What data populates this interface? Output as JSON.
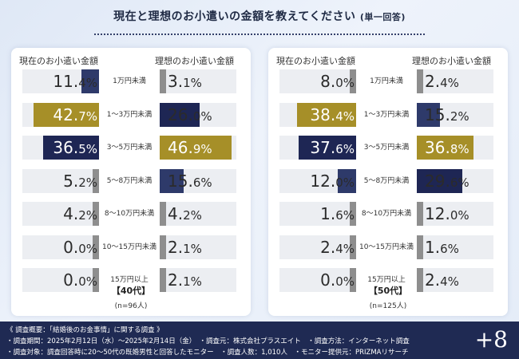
{
  "title": "現在と理想のお小遣いの金額を教えてください",
  "subtitle": "(単一回答)",
  "colors": {
    "navy": "#1e2654",
    "gold": "#a68f28",
    "slate": "#2e3a6a",
    "gray": "#8e8e8e",
    "lightgray": "#eceef2"
  },
  "chart_data": [
    {
      "type": "bar",
      "group_label": "【40代】",
      "n_label": "(n=96人)",
      "current_label": "現在のお小遣い金額",
      "ideal_label": "理想のお小遣い金額",
      "categories": [
        "1万円未満",
        "1〜3万円未満",
        "3〜5万円未満",
        "5〜8万円未満",
        "8〜10万円未満",
        "10〜15万円未満",
        "15万円以上"
      ],
      "series": [
        {
          "name": "現在のお小遣い金額",
          "values": [
            11.4,
            42.7,
            36.5,
            5.2,
            4.2,
            0.0,
            0.0
          ]
        },
        {
          "name": "理想のお小遣い金額",
          "values": [
            3.1,
            26.0,
            46.9,
            15.6,
            4.2,
            2.1,
            2.1
          ]
        }
      ],
      "current_text": [
        [
          "11.",
          "4%"
        ],
        [
          "42.",
          "7%"
        ],
        [
          "36.",
          "5%"
        ],
        [
          "5.",
          "2%"
        ],
        [
          "4.",
          "2%"
        ],
        [
          "0.",
          "0%"
        ],
        [
          "0.",
          "0%"
        ]
      ],
      "ideal_text": [
        [
          "3.",
          "1%"
        ],
        [
          "26.",
          "0%"
        ],
        [
          "46.",
          "9%"
        ],
        [
          "15.",
          "6%"
        ],
        [
          "4.",
          "2%"
        ],
        [
          "2.",
          "1%"
        ],
        [
          "2.",
          "1%"
        ]
      ],
      "current_colors": [
        "slate",
        "gold",
        "navy",
        "gray",
        "gray",
        "gray",
        "gray"
      ],
      "ideal_colors": [
        "gray",
        "navy",
        "gold",
        "slate",
        "gray",
        "gray",
        "gray"
      ]
    },
    {
      "type": "bar",
      "group_label": "【50代】",
      "n_label": "(n=125人)",
      "current_label": "現在のお小遣い金額",
      "ideal_label": "理想のお小遣い金額",
      "categories": [
        "1万円未満",
        "1〜3万円未満",
        "3〜5万円未満",
        "5〜8万円未満",
        "8〜10万円未満",
        "10〜15万円未満",
        "15万円以上"
      ],
      "series": [
        {
          "name": "現在のお小遣い金額",
          "values": [
            8.0,
            38.4,
            37.6,
            12.0,
            1.6,
            2.4,
            0.0
          ]
        },
        {
          "name": "理想のお小遣い金額",
          "values": [
            2.4,
            15.2,
            36.8,
            29.6,
            12.0,
            1.6,
            2.4
          ]
        }
      ],
      "current_text": [
        [
          "8.",
          "0%"
        ],
        [
          "38.",
          "4%"
        ],
        [
          "37.",
          "6%"
        ],
        [
          "12.",
          "0%"
        ],
        [
          "1.",
          "6%"
        ],
        [
          "2.",
          "4%"
        ],
        [
          "0.",
          "0%"
        ]
      ],
      "ideal_text": [
        [
          "2.",
          "4%"
        ],
        [
          "15.",
          "2%"
        ],
        [
          "36.",
          "8%"
        ],
        [
          "29.",
          "6%"
        ],
        [
          "12.",
          "0%"
        ],
        [
          "1.",
          "6%"
        ],
        [
          "2.",
          "4%"
        ]
      ],
      "current_colors": [
        "gray",
        "gold",
        "navy",
        "slate",
        "gray",
        "gray",
        "gray"
      ],
      "ideal_colors": [
        "gray",
        "slate",
        "gold",
        "navy",
        "gray",
        "gray",
        "gray"
      ]
    }
  ],
  "footer": {
    "line1": "《 調査概要：「結婚後のお金事情」に関する調査 》",
    "line2": "・調査期間：2025年2月12日（水）〜2025年2月14日（金）　・調査元：株式会社プラスエイト　・調査方法：インターネット調査",
    "line3": "・調査対象：調査回答時に20〜50代の既婚男性と回答したモニター　・調査人数：1,010人　・モニター提供元：PRIZMAリサーチ",
    "brand": "+8"
  }
}
